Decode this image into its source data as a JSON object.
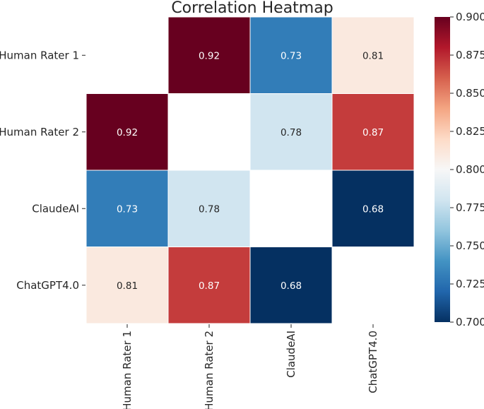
{
  "chart_data": {
    "type": "heatmap",
    "title": "Correlation Heatmap",
    "row_labels": [
      "Human Rater 1",
      "Human Rater 2",
      "ClaudeAI",
      "ChatGPT4.0"
    ],
    "col_labels": [
      "Human Rater 1",
      "Human Rater 2",
      "ClaudeAI",
      "ChatGPT4.0"
    ],
    "values": [
      [
        null,
        0.92,
        0.73,
        0.81
      ],
      [
        0.92,
        null,
        0.78,
        0.87
      ],
      [
        0.73,
        0.78,
        null,
        0.68
      ],
      [
        0.81,
        0.87,
        0.68,
        null
      ]
    ],
    "cell_labels": [
      [
        "",
        "0.92",
        "0.73",
        "0.81"
      ],
      [
        "0.92",
        "",
        "0.78",
        "0.87"
      ],
      [
        "0.73",
        "0.78",
        "",
        "0.68"
      ],
      [
        "0.81",
        "0.87",
        "0.68",
        ""
      ]
    ],
    "colormap": "RdBu_r",
    "vmin": 0.7,
    "vmax": 0.9,
    "colorbar_ticks": [
      "0.700",
      "0.725",
      "0.750",
      "0.775",
      "0.800",
      "0.825",
      "0.850",
      "0.875",
      "0.900"
    ],
    "colors": {
      "stops": [
        "#053061",
        "#2166ac",
        "#4393c3",
        "#92c5de",
        "#d1e5f0",
        "#f7f7f7",
        "#fddbc7",
        "#f4a582",
        "#d6604d",
        "#b2182b",
        "#67001f"
      ],
      "grid": "#ffffff",
      "axis": "#262626"
    }
  }
}
